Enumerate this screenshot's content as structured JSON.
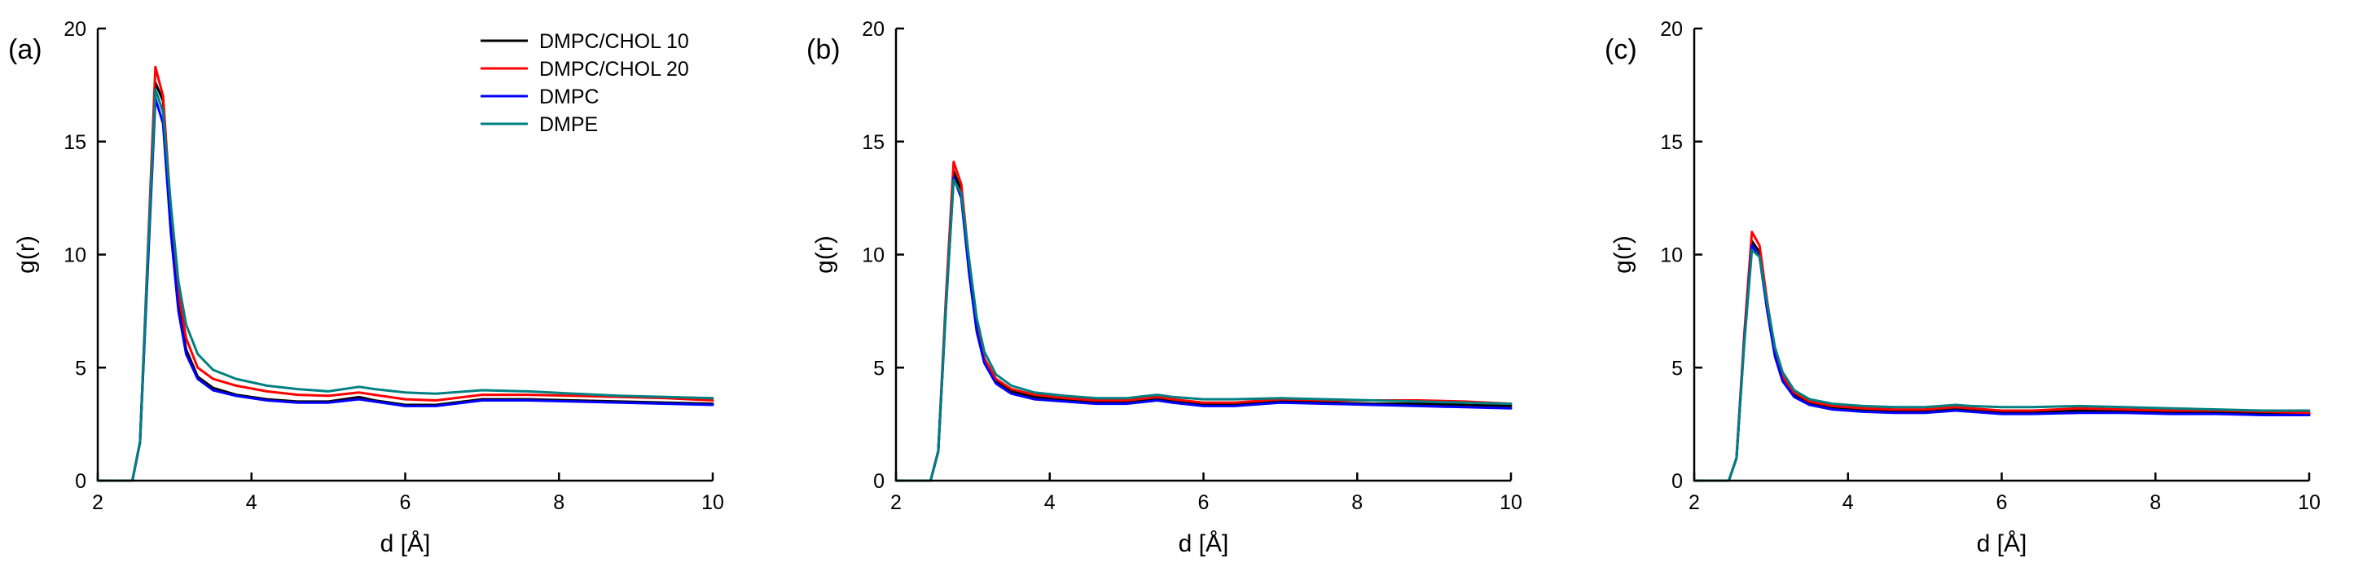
{
  "chart_data": [
    {
      "type": "line",
      "panel_label": "(a)",
      "xlabel": "d [Å]",
      "ylabel": "g(r)",
      "xlim": [
        2,
        10
      ],
      "ylim": [
        0,
        20
      ],
      "xticks": [
        2,
        4,
        6,
        8,
        10
      ],
      "yticks": [
        0,
        5,
        10,
        15,
        20
      ],
      "legend": "top-right",
      "series": [
        {
          "name": "DMPC/CHOL 10",
          "color": "#000000",
          "x": [
            2.0,
            2.45,
            2.55,
            2.65,
            2.75,
            2.85,
            2.95,
            3.05,
            3.15,
            3.3,
            3.5,
            3.8,
            4.2,
            4.6,
            5.0,
            5.4,
            5.6,
            6.0,
            6.4,
            7.0,
            7.6,
            8.2,
            8.8,
            9.4,
            10.0
          ],
          "y": [
            0,
            0,
            1.7,
            9.5,
            17.6,
            16.8,
            11.5,
            7.8,
            5.8,
            4.6,
            4.1,
            3.8,
            3.6,
            3.5,
            3.5,
            3.7,
            3.55,
            3.35,
            3.35,
            3.6,
            3.6,
            3.55,
            3.5,
            3.45,
            3.4
          ]
        },
        {
          "name": "DMPC/CHOL 20",
          "color": "#ff0000",
          "x": [
            2.0,
            2.45,
            2.55,
            2.65,
            2.75,
            2.85,
            2.95,
            3.05,
            3.15,
            3.3,
            3.5,
            3.8,
            4.2,
            4.6,
            5.0,
            5.4,
            5.6,
            6.0,
            6.4,
            7.0,
            7.6,
            8.2,
            8.8,
            9.4,
            10.0
          ],
          "y": [
            0,
            0,
            1.7,
            10.0,
            18.3,
            17.0,
            12.0,
            8.3,
            6.3,
            5.0,
            4.5,
            4.2,
            3.95,
            3.8,
            3.75,
            3.9,
            3.8,
            3.6,
            3.55,
            3.8,
            3.8,
            3.75,
            3.7,
            3.65,
            3.55
          ]
        },
        {
          "name": "DMPC",
          "color": "#0000ff",
          "x": [
            2.0,
            2.45,
            2.55,
            2.65,
            2.75,
            2.85,
            2.95,
            3.05,
            3.15,
            3.3,
            3.5,
            3.8,
            4.2,
            4.6,
            5.0,
            5.4,
            5.6,
            6.0,
            6.4,
            7.0,
            7.6,
            8.2,
            8.8,
            9.4,
            10.0
          ],
          "y": [
            0,
            0,
            1.7,
            9.3,
            16.9,
            15.8,
            11.0,
            7.5,
            5.6,
            4.5,
            4.0,
            3.75,
            3.55,
            3.45,
            3.45,
            3.6,
            3.5,
            3.3,
            3.3,
            3.55,
            3.55,
            3.5,
            3.45,
            3.4,
            3.35
          ]
        },
        {
          "name": "DMPE",
          "color": "#008080",
          "x": [
            2.0,
            2.45,
            2.55,
            2.65,
            2.75,
            2.85,
            2.95,
            3.05,
            3.15,
            3.3,
            3.5,
            3.8,
            4.2,
            4.6,
            5.0,
            5.4,
            5.6,
            6.0,
            6.4,
            7.0,
            7.6,
            8.2,
            8.8,
            9.4,
            10.0
          ],
          "y": [
            0,
            0,
            1.7,
            9.8,
            17.3,
            16.3,
            12.2,
            8.8,
            6.9,
            5.6,
            4.9,
            4.5,
            4.2,
            4.05,
            3.95,
            4.15,
            4.05,
            3.9,
            3.85,
            4.0,
            3.95,
            3.85,
            3.75,
            3.7,
            3.65
          ]
        }
      ]
    },
    {
      "type": "line",
      "panel_label": "(b)",
      "xlabel": "d [Å]",
      "ylabel": "g(r)",
      "xlim": [
        2,
        10
      ],
      "ylim": [
        0,
        20
      ],
      "xticks": [
        2,
        4,
        6,
        8,
        10
      ],
      "yticks": [
        0,
        5,
        10,
        15,
        20
      ],
      "series": [
        {
          "name": "DMPC/CHOL 10",
          "color": "#000000",
          "x": [
            2.0,
            2.45,
            2.55,
            2.65,
            2.75,
            2.85,
            2.95,
            3.05,
            3.15,
            3.3,
            3.5,
            3.8,
            4.2,
            4.6,
            5.0,
            5.4,
            5.6,
            6.0,
            6.4,
            7.0,
            7.6,
            8.2,
            8.8,
            9.4,
            10.0
          ],
          "y": [
            0,
            0,
            1.3,
            7.8,
            13.7,
            12.8,
            9.5,
            6.8,
            5.3,
            4.4,
            3.95,
            3.7,
            3.55,
            3.45,
            3.45,
            3.6,
            3.5,
            3.35,
            3.35,
            3.5,
            3.45,
            3.4,
            3.4,
            3.35,
            3.3
          ]
        },
        {
          "name": "DMPC/CHOL 20",
          "color": "#ff0000",
          "x": [
            2.0,
            2.45,
            2.55,
            2.65,
            2.75,
            2.85,
            2.95,
            3.05,
            3.15,
            3.3,
            3.5,
            3.8,
            4.2,
            4.6,
            5.0,
            5.4,
            5.6,
            6.0,
            6.4,
            7.0,
            7.6,
            8.2,
            8.8,
            9.4,
            10.0
          ],
          "y": [
            0,
            0,
            1.3,
            8.1,
            14.1,
            13.1,
            9.7,
            6.9,
            5.4,
            4.5,
            4.05,
            3.8,
            3.65,
            3.55,
            3.55,
            3.7,
            3.6,
            3.45,
            3.45,
            3.6,
            3.55,
            3.55,
            3.55,
            3.5,
            3.4
          ]
        },
        {
          "name": "DMPC",
          "color": "#0000ff",
          "x": [
            2.0,
            2.45,
            2.55,
            2.65,
            2.75,
            2.85,
            2.95,
            3.05,
            3.15,
            3.3,
            3.5,
            3.8,
            4.2,
            4.6,
            5.0,
            5.4,
            5.6,
            6.0,
            6.4,
            7.0,
            7.6,
            8.2,
            8.8,
            9.4,
            10.0
          ],
          "y": [
            0,
            0,
            1.3,
            7.6,
            13.4,
            12.5,
            9.2,
            6.6,
            5.2,
            4.3,
            3.85,
            3.6,
            3.5,
            3.4,
            3.4,
            3.55,
            3.45,
            3.3,
            3.3,
            3.45,
            3.4,
            3.35,
            3.3,
            3.25,
            3.2
          ]
        },
        {
          "name": "DMPE",
          "color": "#008080",
          "x": [
            2.0,
            2.45,
            2.55,
            2.65,
            2.75,
            2.85,
            2.95,
            3.05,
            3.15,
            3.3,
            3.5,
            3.8,
            4.2,
            4.6,
            5.0,
            5.4,
            5.6,
            6.0,
            6.4,
            7.0,
            7.6,
            8.2,
            8.8,
            9.4,
            10.0
          ],
          "y": [
            0,
            0,
            1.3,
            7.7,
            13.3,
            12.7,
            9.8,
            7.2,
            5.7,
            4.7,
            4.2,
            3.9,
            3.75,
            3.65,
            3.65,
            3.8,
            3.7,
            3.6,
            3.6,
            3.65,
            3.6,
            3.55,
            3.5,
            3.45,
            3.4
          ]
        }
      ]
    },
    {
      "type": "line",
      "panel_label": "(c)",
      "xlabel": "d [Å]",
      "ylabel": "g(r)",
      "xlim": [
        2,
        10
      ],
      "ylim": [
        0,
        20
      ],
      "xticks": [
        2,
        4,
        6,
        8,
        10
      ],
      "yticks": [
        0,
        5,
        10,
        15,
        20
      ],
      "series": [
        {
          "name": "DMPC/CHOL 10",
          "color": "#000000",
          "x": [
            2.0,
            2.45,
            2.55,
            2.65,
            2.75,
            2.85,
            2.95,
            3.05,
            3.15,
            3.3,
            3.5,
            3.8,
            4.2,
            4.6,
            5.0,
            5.4,
            5.6,
            6.0,
            6.4,
            7.0,
            7.6,
            8.2,
            8.8,
            9.4,
            10.0
          ],
          "y": [
            0,
            0,
            1.0,
            6.2,
            10.6,
            10.1,
            7.7,
            5.6,
            4.5,
            3.8,
            3.45,
            3.25,
            3.15,
            3.1,
            3.1,
            3.2,
            3.15,
            3.05,
            3.05,
            3.1,
            3.1,
            3.05,
            3.0,
            3.0,
            2.95
          ]
        },
        {
          "name": "DMPC/CHOL 20",
          "color": "#ff0000",
          "x": [
            2.0,
            2.45,
            2.55,
            2.65,
            2.75,
            2.85,
            2.95,
            3.05,
            3.15,
            3.3,
            3.5,
            3.8,
            4.2,
            4.6,
            5.0,
            5.4,
            5.6,
            6.0,
            6.4,
            7.0,
            7.6,
            8.2,
            8.8,
            9.4,
            10.0
          ],
          "y": [
            0,
            0,
            1.0,
            6.4,
            11.0,
            10.4,
            7.9,
            5.8,
            4.6,
            3.9,
            3.5,
            3.3,
            3.2,
            3.15,
            3.15,
            3.25,
            3.2,
            3.1,
            3.1,
            3.2,
            3.15,
            3.1,
            3.1,
            3.05,
            3.0
          ]
        },
        {
          "name": "DMPC",
          "color": "#0000ff",
          "x": [
            2.0,
            2.45,
            2.55,
            2.65,
            2.75,
            2.85,
            2.95,
            3.05,
            3.15,
            3.3,
            3.5,
            3.8,
            4.2,
            4.6,
            5.0,
            5.4,
            5.6,
            6.0,
            6.4,
            7.0,
            7.6,
            8.2,
            8.8,
            9.4,
            10.0
          ],
          "y": [
            0,
            0,
            1.0,
            6.1,
            10.4,
            9.9,
            7.5,
            5.5,
            4.4,
            3.7,
            3.35,
            3.15,
            3.05,
            3.0,
            3.0,
            3.1,
            3.05,
            2.95,
            2.95,
            3.0,
            3.0,
            2.95,
            2.95,
            2.9,
            2.9
          ]
        },
        {
          "name": "DMPE",
          "color": "#008080",
          "x": [
            2.0,
            2.45,
            2.55,
            2.65,
            2.75,
            2.85,
            2.95,
            3.05,
            3.15,
            3.3,
            3.5,
            3.8,
            4.2,
            4.6,
            5.0,
            5.4,
            5.6,
            6.0,
            6.4,
            7.0,
            7.6,
            8.2,
            8.8,
            9.4,
            10.0
          ],
          "y": [
            0,
            0,
            1.0,
            6.0,
            10.2,
            9.9,
            7.8,
            5.9,
            4.8,
            4.0,
            3.6,
            3.4,
            3.3,
            3.25,
            3.25,
            3.35,
            3.3,
            3.25,
            3.25,
            3.3,
            3.25,
            3.2,
            3.15,
            3.1,
            3.1
          ]
        }
      ]
    }
  ]
}
